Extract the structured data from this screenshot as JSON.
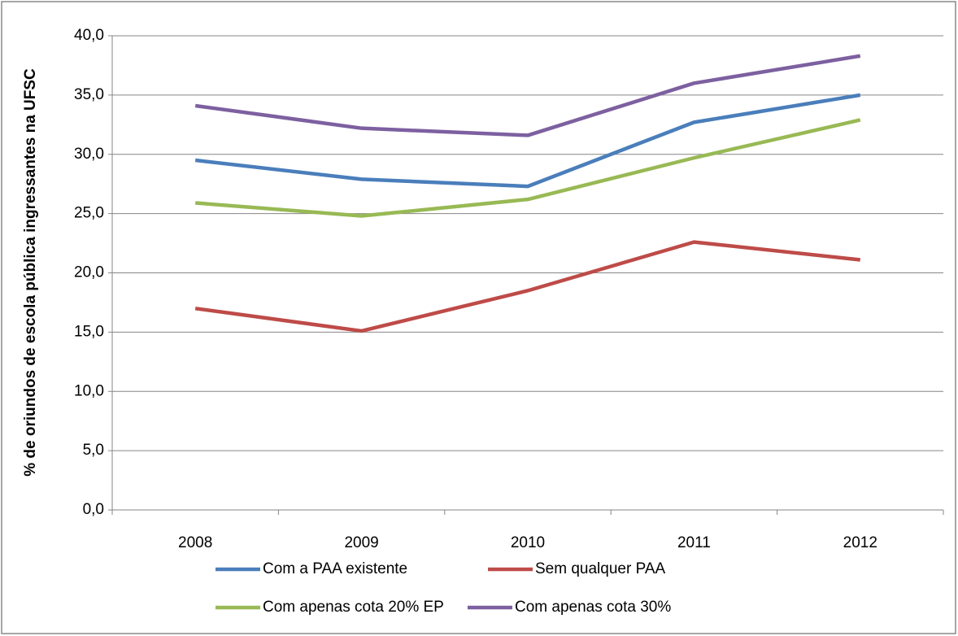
{
  "chart_data": {
    "type": "line",
    "y_label": "% de oriundos de escola pública ingressantes na UFSC",
    "categories": [
      "2008",
      "2009",
      "2010",
      "2011",
      "2012"
    ],
    "series": [
      {
        "name": "Com a PAA existente",
        "color": "#4a7ebb",
        "values": [
          29.5,
          27.9,
          27.3,
          32.7,
          35.0
        ]
      },
      {
        "name": "Sem qualquer PAA",
        "color": "#be4b48",
        "values": [
          17.0,
          15.1,
          18.5,
          22.6,
          21.1
        ]
      },
      {
        "name": "Com apenas cota 20% EP",
        "color": "#98b954",
        "values": [
          25.9,
          24.8,
          26.2,
          29.7,
          32.9
        ]
      },
      {
        "name": "Com apenas cota 30%",
        "color": "#7d60a0",
        "values": [
          34.1,
          32.2,
          31.6,
          36.0,
          38.3
        ]
      }
    ],
    "ylim": [
      0,
      40
    ],
    "yticks": [
      {
        "value": 0,
        "label": "0,0"
      },
      {
        "value": 5,
        "label": "5,0"
      },
      {
        "value": 10,
        "label": "10,0"
      },
      {
        "value": 15,
        "label": "15,0"
      },
      {
        "value": 20,
        "label": "20,0"
      },
      {
        "value": 25,
        "label": "25,0"
      },
      {
        "value": 30,
        "label": "30,0"
      },
      {
        "value": 35,
        "label": "35,0"
      },
      {
        "value": 40,
        "label": "40,0"
      }
    ],
    "grid": true,
    "legend": "bottom"
  }
}
